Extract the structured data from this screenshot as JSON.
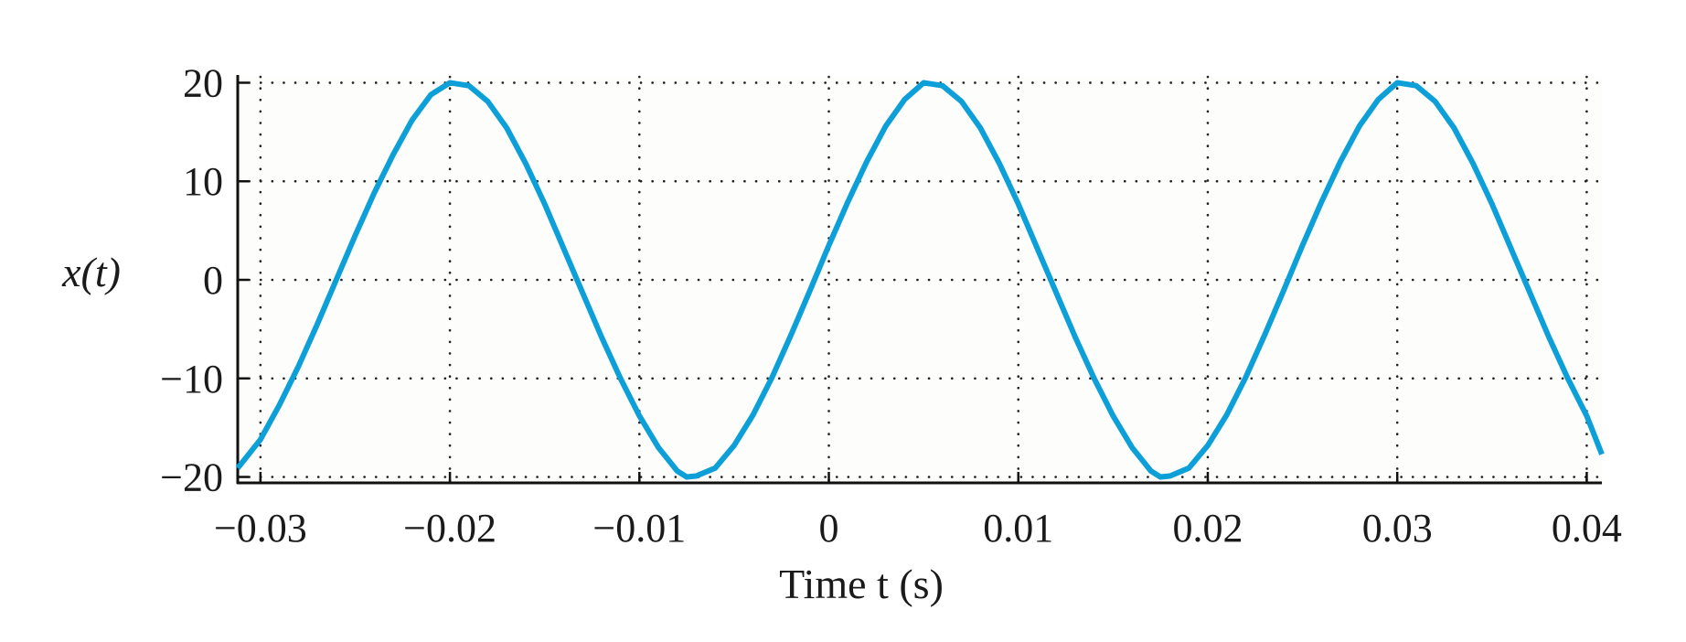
{
  "chart_data": {
    "type": "line",
    "title": "",
    "xlabel": "Time t (s)",
    "ylabel": "x(t)",
    "xlim": [
      -0.0312,
      0.0408
    ],
    "ylim": [
      -20.6,
      20.6
    ],
    "grid": true,
    "x_ticks": [
      -0.03,
      -0.02,
      -0.01,
      0,
      0.01,
      0.02,
      0.03,
      0.04
    ],
    "x_tick_labels": [
      "−0.03",
      "−0.02",
      "−0.01",
      "0",
      "0.01",
      "0.02",
      "0.03",
      "0.04"
    ],
    "y_ticks": [
      -20,
      -10,
      0,
      10,
      20
    ],
    "y_tick_labels": [
      "−20",
      "−10",
      "0",
      "10",
      "20"
    ],
    "series": [
      {
        "color": "#0d9fd8",
        "x": [
          -0.0312,
          -0.03,
          -0.029,
          -0.028,
          -0.027,
          -0.026,
          -0.025,
          -0.024,
          -0.023,
          -0.022,
          -0.021,
          -0.02,
          -0.019,
          -0.018,
          -0.017,
          -0.016,
          -0.015,
          -0.014,
          -0.013,
          -0.012,
          -0.011,
          -0.01,
          -0.009,
          -0.008,
          -0.0075,
          -0.007,
          -0.006,
          -0.005,
          -0.004,
          -0.003,
          -0.002,
          -0.001,
          0,
          0.001,
          0.002,
          0.003,
          0.004,
          0.005,
          0.006,
          0.007,
          0.008,
          0.009,
          0.01,
          0.011,
          0.012,
          0.013,
          0.014,
          0.015,
          0.016,
          0.017,
          0.0175,
          0.018,
          0.019,
          0.02,
          0.021,
          0.022,
          0.023,
          0.024,
          0.025,
          0.026,
          0.027,
          0.028,
          0.029,
          0.03,
          0.031,
          0.032,
          0.033,
          0.034,
          0.035,
          0.036,
          0.037,
          0.038,
          0.039,
          0.04,
          0.0408
        ],
        "y": [
          -19.1,
          -16.2,
          -12.7,
          -8.8,
          -4.5,
          0.0,
          4.5,
          8.8,
          12.7,
          16.2,
          18.8,
          20.0,
          19.7,
          18.1,
          15.4,
          11.8,
          7.7,
          3.2,
          -1.3,
          -5.8,
          -10.0,
          -13.8,
          -17.0,
          -19.4,
          -20.0,
          -19.9,
          -19.1,
          -16.8,
          -13.7,
          -9.9,
          -5.6,
          -1.1,
          3.5,
          7.9,
          12.0,
          15.6,
          18.3,
          20.0,
          19.7,
          18.1,
          15.4,
          11.8,
          7.7,
          3.2,
          -1.3,
          -5.8,
          -10.0,
          -13.8,
          -17.0,
          -19.4,
          -20.0,
          -19.9,
          -19.1,
          -16.8,
          -13.7,
          -9.9,
          -5.6,
          -1.1,
          3.5,
          7.9,
          12.0,
          15.6,
          18.3,
          20.0,
          19.7,
          18.1,
          15.4,
          11.8,
          7.7,
          3.2,
          -1.3,
          -5.8,
          -10.0,
          -13.8,
          -17.7
        ]
      }
    ]
  }
}
